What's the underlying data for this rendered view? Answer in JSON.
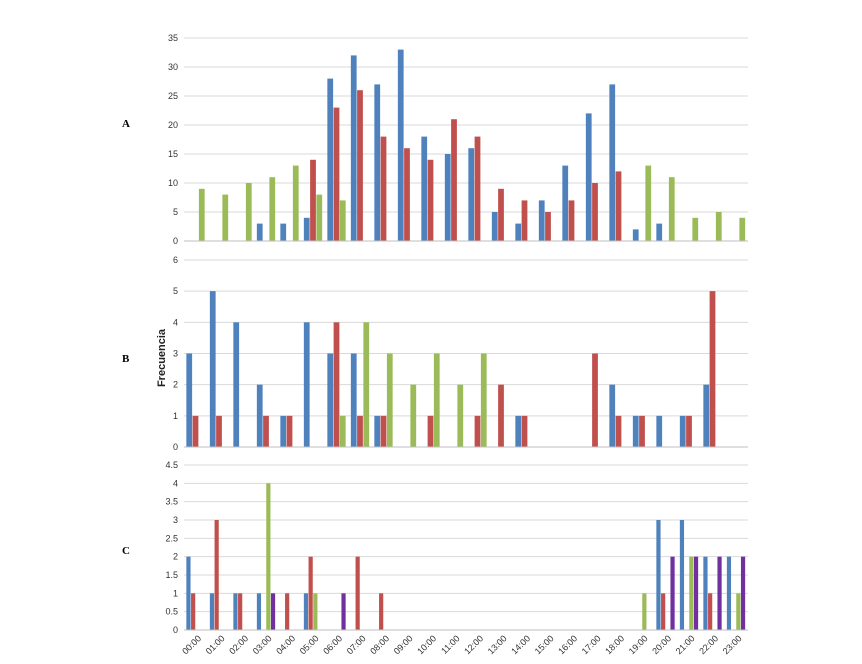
{
  "chart_data": [
    {
      "type": "bar",
      "panel_label": "A",
      "ylim": [
        0,
        35
      ],
      "ytick_step": 5,
      "series_colors": [
        "#4f81bd",
        "#c0504d",
        "#9bbb59"
      ],
      "series": [
        {
          "values": [
            0,
            0,
            0,
            3,
            3,
            4,
            28,
            32,
            27,
            33,
            18,
            15,
            16,
            5,
            3,
            7,
            13,
            22,
            27,
            2,
            3,
            0,
            0,
            0
          ]
        },
        {
          "values": [
            0,
            0,
            0,
            0,
            0,
            14,
            23,
            26,
            18,
            16,
            14,
            21,
            18,
            9,
            7,
            5,
            7,
            10,
            12,
            0,
            0,
            0,
            0,
            0
          ]
        },
        {
          "values": [
            9,
            8,
            10,
            11,
            13,
            8,
            7,
            0,
            0,
            0,
            0,
            0,
            0,
            0,
            0,
            0,
            0,
            0,
            0,
            13,
            11,
            4,
            5,
            4
          ]
        }
      ]
    },
    {
      "type": "bar",
      "panel_label": "B",
      "ylabel": "Frecuencia",
      "ylim": [
        0,
        6
      ],
      "ytick_step": 1,
      "series_colors": [
        "#4f81bd",
        "#c0504d",
        "#9bbb59"
      ],
      "series": [
        {
          "values": [
            3,
            5,
            4,
            2,
            1,
            4,
            3,
            3,
            1,
            0,
            0,
            0,
            0,
            0,
            1,
            0,
            0,
            0,
            2,
            1,
            1,
            1,
            2,
            0
          ]
        },
        {
          "values": [
            1,
            1,
            0,
            1,
            1,
            0,
            4,
            1,
            1,
            0,
            1,
            0,
            1,
            2,
            1,
            0,
            0,
            3,
            1,
            1,
            0,
            1,
            5,
            0
          ]
        },
        {
          "values": [
            0,
            0,
            0,
            0,
            0,
            0,
            1,
            4,
            3,
            2,
            3,
            2,
            3,
            0,
            0,
            0,
            0,
            0,
            0,
            0,
            0,
            0,
            0,
            0
          ]
        }
      ]
    },
    {
      "type": "bar",
      "panel_label": "C",
      "ylim": [
        0,
        4.5
      ],
      "ytick_step": 0.5,
      "series_colors": [
        "#4f81bd",
        "#c0504d",
        "#9bbb59",
        "#7030a0"
      ],
      "series": [
        {
          "values": [
            2,
            1,
            1,
            1,
            0,
            1,
            0,
            0,
            0,
            0,
            0,
            0,
            0,
            0,
            0,
            0,
            0,
            0,
            0,
            0,
            3,
            3,
            2,
            2
          ]
        },
        {
          "values": [
            1,
            3,
            1,
            0,
            1,
            2,
            0,
            2,
            1,
            0,
            0,
            0,
            0,
            0,
            0,
            0,
            0,
            0,
            0,
            0,
            1,
            0,
            1,
            0
          ]
        },
        {
          "values": [
            0,
            0,
            0,
            4,
            0,
            1,
            0,
            0,
            0,
            0,
            0,
            0,
            0,
            0,
            0,
            0,
            0,
            0,
            0,
            1,
            0,
            2,
            0,
            1
          ]
        },
        {
          "values": [
            0,
            0,
            0,
            1,
            0,
            0,
            1,
            0,
            0,
            0,
            0,
            0,
            0,
            0,
            0,
            0,
            0,
            0,
            0,
            0,
            2,
            2,
            2,
            2
          ]
        }
      ]
    }
  ],
  "x_categories": [
    "00:00",
    "01:00",
    "02:00",
    "03:00",
    "04:00",
    "05:00",
    "06:00",
    "07:00",
    "08:00",
    "09:00",
    "10:00",
    "11:00",
    "12:00",
    "13:00",
    "14:00",
    "15:00",
    "16:00",
    "17:00",
    "18:00",
    "19:00",
    "20:00",
    "21:00",
    "22:00",
    "23:00"
  ]
}
